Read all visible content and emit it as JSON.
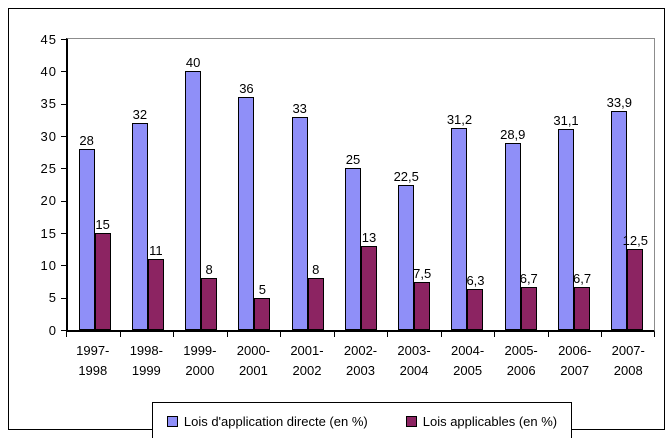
{
  "chart_data": {
    "type": "bar",
    "title": "",
    "categories": [
      "1997-1998",
      "1998-1999",
      "1999-2000",
      "2000-2001",
      "2001-2002",
      "2002-2003",
      "2003-2004",
      "2004-2005",
      "2005-2006",
      "2006-2007",
      "2007-2008"
    ],
    "series": [
      {
        "name": "Lois d'application directe (en %)",
        "color": "#8f8ff8",
        "values": [
          28,
          32,
          40,
          36,
          33,
          25,
          22.5,
          31.2,
          28.9,
          31.1,
          33.9
        ],
        "labels": [
          "28",
          "32",
          "40",
          "36",
          "33",
          "25",
          "22,5",
          "31,2",
          "28,9",
          "31,1",
          "33,9"
        ]
      },
      {
        "name": "Lois applicables (en %)",
        "color": "#8c2462",
        "values": [
          15,
          11,
          8,
          5,
          8,
          13,
          7.5,
          6.3,
          6.7,
          6.7,
          12.5
        ],
        "labels": [
          "15",
          "11",
          "8",
          "5",
          "8",
          "13",
          "7,5",
          "6,3",
          "6,7",
          "6,7",
          "12,5"
        ]
      }
    ],
    "ylim": [
      0,
      45
    ],
    "ytick_step": 5,
    "ytick_labels": [
      "0",
      "5",
      "10",
      "15",
      "20",
      "25",
      "30",
      "35",
      "40",
      "45"
    ],
    "xlabel": "",
    "ylabel": "",
    "grid": "top-border-only",
    "legend_position": "bottom-center"
  },
  "colors": {
    "series_blue": "#8f8ff8",
    "series_maroon": "#8c2462",
    "axis": "#000000",
    "plot_border_gray": "#8c8c8c",
    "background": "#ffffff"
  }
}
